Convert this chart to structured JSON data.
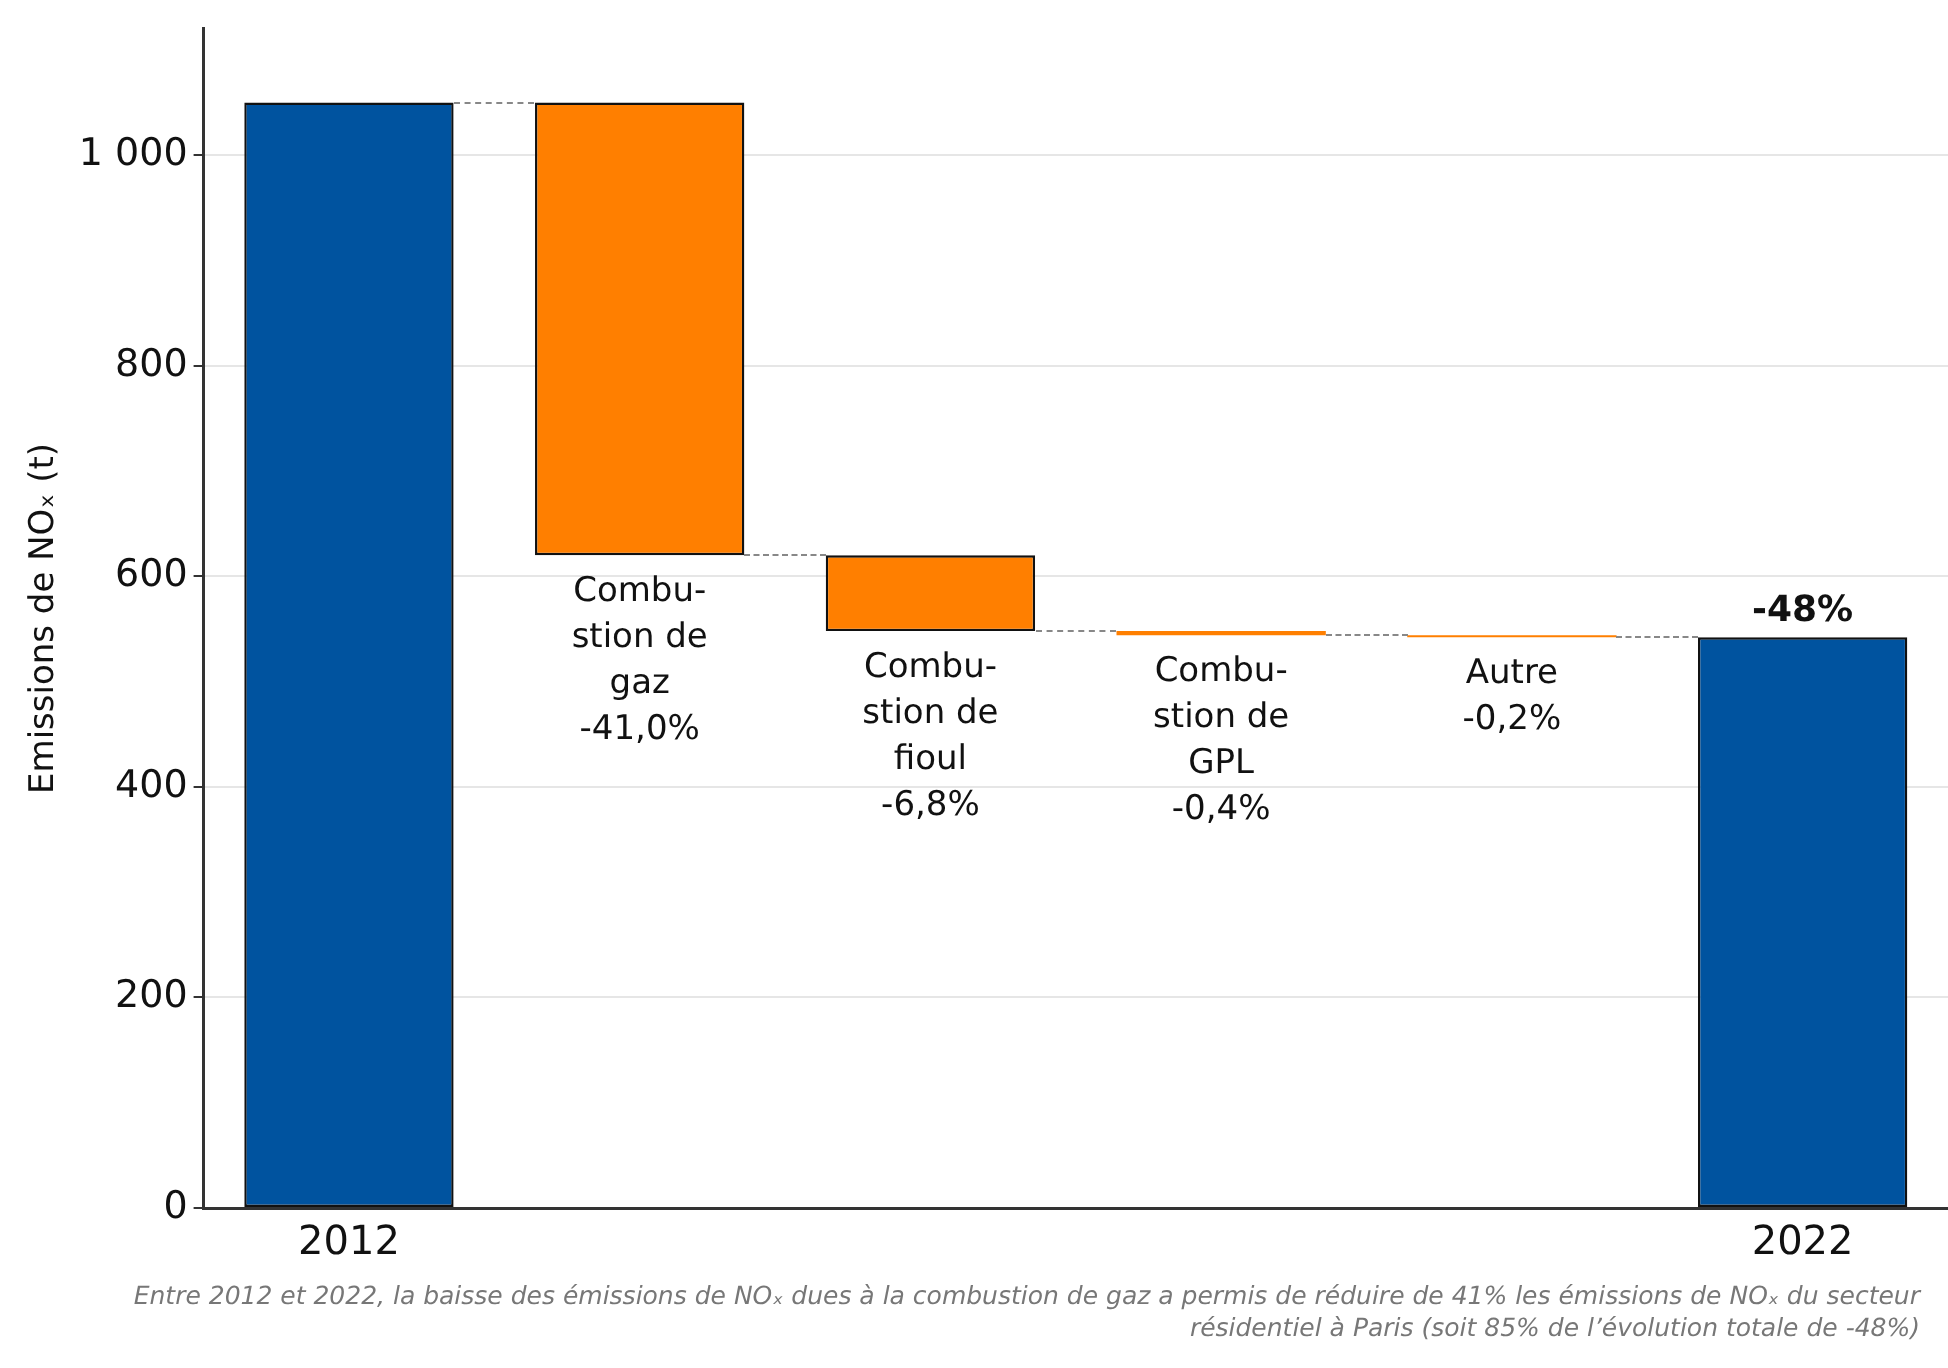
{
  "chart_data": {
    "type": "bar",
    "ylabel": "Emissions de NOₓ (t)",
    "categories": [
      "2012",
      "Combu-\nstion de\ngaz\n-41,0%",
      "Combu-\nstion de\nfioul\n-6,8%",
      "Combu-\nstion de\nGPL\n-0,4%",
      "Autre\n-0,2%",
      "2022"
    ],
    "values": [
      1050,
      -430,
      -72,
      -4,
      -2,
      542
    ],
    "base": [
      null,
      1050,
      620,
      548,
      544,
      null
    ],
    "colors": [
      "#00539f",
      "#ff7f00",
      "#ff7f00",
      "#ff7f00",
      "#ff7f00",
      "#00539f"
    ],
    "ylim": [
      0,
      1120
    ],
    "yticks": [
      0,
      200,
      400,
      600,
      800,
      {
        "value": 1000,
        "label": "1 000"
      }
    ],
    "grid": "y",
    "legend": false,
    "annotations": [
      {
        "text": "-48%",
        "x": "2022",
        "y": 542
      },
      "Entre 2012 et 2022, la baisse des émissions de NOₓ dues à la combustion de gaz a permis de réduire de 41% les émissions de NOₓ du secteur résidentiel à Paris (soit 85% de l’évolution totale de -48%)"
    ]
  }
}
